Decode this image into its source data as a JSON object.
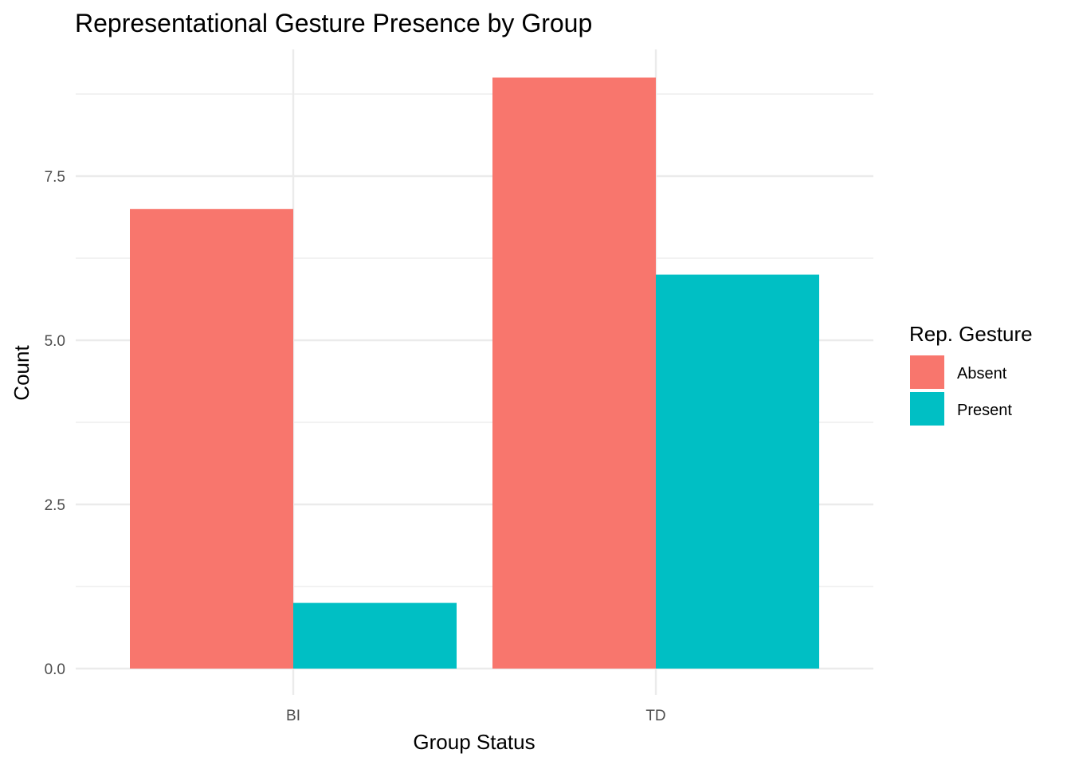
{
  "chart_data": {
    "type": "bar",
    "title": "Representational Gesture Presence by Group",
    "xlabel": "Group Status",
    "ylabel": "Count",
    "categories": [
      "BI",
      "TD"
    ],
    "series": [
      {
        "name": "Absent",
        "values": [
          7,
          9
        ],
        "color": "#F8766D"
      },
      {
        "name": "Present",
        "values": [
          1,
          6
        ],
        "color": "#00BFC4"
      }
    ],
    "ylim": [
      0,
      9
    ],
    "yticks": [
      0,
      2.5,
      5,
      7.5
    ],
    "ytick_labels": [
      "0.0",
      "2.5",
      "5.0",
      "7.5"
    ],
    "yminor": [
      1.25,
      3.75,
      6.25,
      8.75
    ],
    "grid": true,
    "legend": {
      "title": "Rep. Gesture",
      "position": "right"
    }
  }
}
